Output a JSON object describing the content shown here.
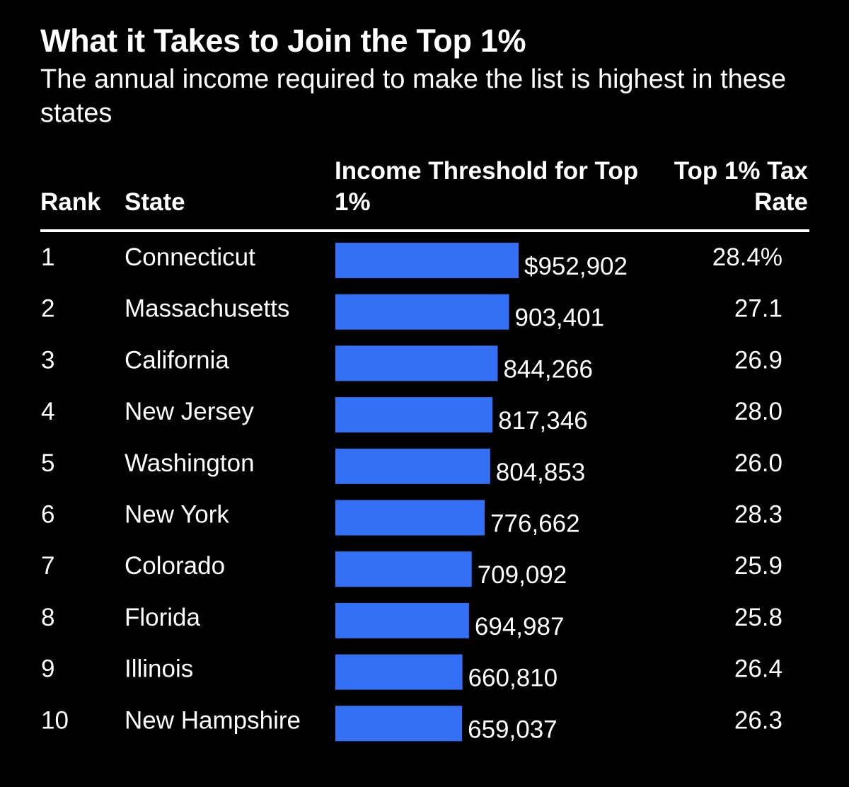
{
  "title": "What it Takes to Join the Top 1%",
  "subtitle": "The annual income required to make the list is highest in these states",
  "headers": {
    "rank": "Rank",
    "state": "State",
    "income": "Income Threshold for Top 1%",
    "tax": "Top 1% Tax Rate"
  },
  "colors": {
    "bar": "#3370f5",
    "background": "#000000",
    "text": "#ffffff"
  },
  "chart_data": {
    "type": "bar",
    "orientation": "horizontal",
    "title": "What it Takes to Join the Top 1%",
    "subtitle": "The annual income required to make the list is highest in these states",
    "categories": [
      "Connecticut",
      "Massachusetts",
      "California",
      "New Jersey",
      "Washington",
      "New York",
      "Colorado",
      "Florida",
      "Illinois",
      "New Hampshire"
    ],
    "ranks": [
      "1",
      "2",
      "3",
      "4",
      "5",
      "6",
      "7",
      "8",
      "9",
      "10"
    ],
    "values": [
      952902,
      903401,
      844266,
      817346,
      804853,
      776662,
      709092,
      694987,
      660810,
      659037
    ],
    "value_labels": [
      "$952,902",
      "903,401",
      "844,266",
      "817,346",
      "804,853",
      "776,662",
      "709,092",
      "694,987",
      "660,810",
      "659,037"
    ],
    "tax_rates": [
      28.4,
      27.1,
      26.9,
      28.0,
      26.0,
      28.3,
      25.9,
      25.8,
      26.4,
      26.3
    ],
    "tax_labels": [
      "28.4%",
      "27.1",
      "26.9",
      "28.0",
      "26.0",
      "28.3",
      "25.9",
      "25.8",
      "26.4",
      "26.3"
    ],
    "xlim": [
      0,
      952902
    ],
    "grid": false,
    "legend": "none"
  }
}
